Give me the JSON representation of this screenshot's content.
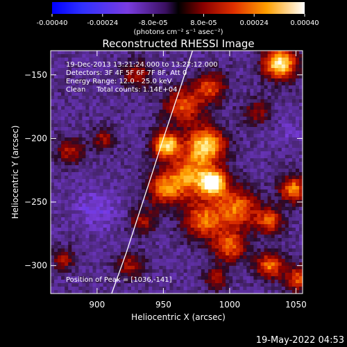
{
  "chart_data": {
    "type": "heatmap",
    "title": "Reconstructed RHESSI Image",
    "xlabel": "Heliocentric X (arcsec)",
    "ylabel": "Heliocentric Y (arcsec)",
    "xlim": [
      865,
      1055
    ],
    "ylim": [
      -322,
      -131
    ],
    "x_ticks": [
      900,
      950,
      1000,
      1050
    ],
    "y_ticks": [
      -150,
      -200,
      -250,
      -300
    ],
    "colorbar": {
      "range": [
        -0.0004,
        0.0004
      ],
      "tick_labels": [
        "-0.00040",
        "-0.00024",
        "-8.0e-05",
        "8.0e-05",
        "0.00024",
        "0.00040"
      ],
      "unit_label": "(photons cm⁻² s⁻¹ asec⁻²)"
    },
    "annotations": [
      "19-Dec-2013 13:21:24.000 to 13:27:12.000",
      "Detectors: 3F 4F 5F 6F 7F 8F, Att 0",
      "Energy Range: 12.0 - 25.0 keV",
      "Clean     Total counts: 1.14E+04"
    ],
    "peak_label": "Position of Peak = [1036,-141]",
    "limb_curve": {
      "x": [
        911,
        922,
        932,
        942,
        950,
        958,
        966,
        972
      ],
      "y": [
        -322,
        -290,
        -258,
        -226,
        -200,
        -175,
        -150,
        -131
      ]
    },
    "blobs": [
      {
        "x": 985,
        "y": -160,
        "v": 0.00018,
        "r": 12
      },
      {
        "x": 965,
        "y": -175,
        "v": 0.0002,
        "r": 14
      },
      {
        "x": 952,
        "y": -205,
        "v": 0.00036,
        "r": 10
      },
      {
        "x": 982,
        "y": -205,
        "v": 0.00034,
        "r": 14
      },
      {
        "x": 988,
        "y": -235,
        "v": 0.00036,
        "r": 10
      },
      {
        "x": 970,
        "y": -230,
        "v": 0.00026,
        "r": 18
      },
      {
        "x": 950,
        "y": -240,
        "v": 0.0002,
        "r": 12
      },
      {
        "x": 1005,
        "y": -255,
        "v": 0.00024,
        "r": 16
      },
      {
        "x": 980,
        "y": -265,
        "v": 0.00022,
        "r": 14
      },
      {
        "x": 1038,
        "y": -141,
        "v": 0.0004,
        "r": 12
      },
      {
        "x": 1048,
        "y": -240,
        "v": 0.00026,
        "r": 10
      },
      {
        "x": 1030,
        "y": -265,
        "v": 0.0002,
        "r": 10
      },
      {
        "x": 1000,
        "y": -285,
        "v": 0.00022,
        "r": 12
      },
      {
        "x": 1030,
        "y": -300,
        "v": 0.00024,
        "r": 10
      },
      {
        "x": 1052,
        "y": -310,
        "v": 0.0002,
        "r": 10
      },
      {
        "x": 990,
        "y": -310,
        "v": 0.00014,
        "r": 8
      },
      {
        "x": 880,
        "y": -210,
        "v": 0.00012,
        "r": 10
      },
      {
        "x": 905,
        "y": -200,
        "v": 0.0001,
        "r": 8
      },
      {
        "x": 930,
        "y": -150,
        "v": 0.00012,
        "r": 10
      },
      {
        "x": 935,
        "y": -265,
        "v": 0.0001,
        "r": 10
      },
      {
        "x": 875,
        "y": -295,
        "v": 0.00012,
        "r": 8
      },
      {
        "x": 1020,
        "y": -180,
        "v": 8e-05,
        "r": 10
      },
      {
        "x": 925,
        "y": -300,
        "v": 0.0001,
        "r": 10
      },
      {
        "x": 900,
        "y": -255,
        "v": -0.00016,
        "r": 16
      },
      {
        "x": 1045,
        "y": -195,
        "v": -0.00012,
        "r": 10
      },
      {
        "x": 878,
        "y": -165,
        "v": -6e-05,
        "r": 12
      }
    ]
  },
  "footer": {
    "timestamp": "19-May-2022 04:53"
  }
}
